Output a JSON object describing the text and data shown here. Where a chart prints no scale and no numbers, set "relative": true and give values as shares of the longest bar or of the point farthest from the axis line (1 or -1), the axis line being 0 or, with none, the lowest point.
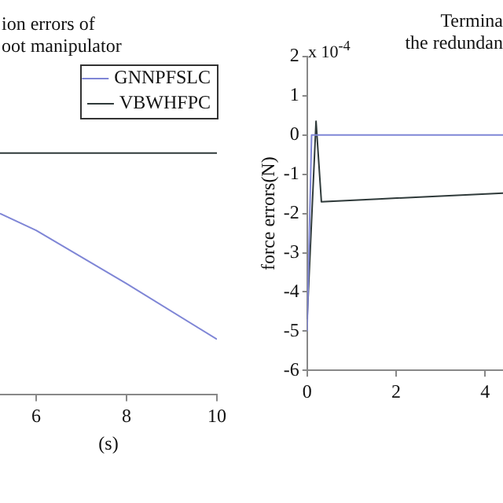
{
  "chart_data": [
    {
      "type": "line",
      "title": "ion errors of\noot manipulator",
      "xlabel": "(s)",
      "relative": true,
      "x": [
        5.2,
        6,
        8,
        10
      ],
      "xlim": [
        5.2,
        10
      ],
      "xticks": [
        6,
        8,
        10
      ],
      "legend": "top right",
      "grid": false,
      "series": [
        {
          "name": "GNNPFSLC",
          "color": "#7f86d6",
          "values": [
            0.75,
            0.68,
            0.46,
            0.23
          ]
        },
        {
          "name": "VBWHFPC",
          "color": "#2f3a3a",
          "values": [
            1,
            1,
            1,
            1
          ]
        }
      ]
    },
    {
      "type": "line",
      "title": "Termina\nthe redundan",
      "ylabel": "force errors(N)",
      "annotations": [
        "x 10$^{-4}$"
      ],
      "xlim": [
        0,
        4.4
      ],
      "xticks": [
        0,
        2,
        4
      ],
      "ylim": [
        -6,
        2
      ],
      "yticks": [
        -6,
        -5,
        -4,
        -3,
        -2,
        -1,
        0,
        1,
        2
      ],
      "grid": false,
      "series": [
        {
          "color": "#7f86d6",
          "x": [
            0,
            0.1,
            4.4
          ],
          "values": [
            -5,
            0,
            0
          ]
        },
        {
          "color": "#2f3a3a",
          "x": [
            0,
            0.2,
            0.32,
            1.6,
            4.4
          ],
          "values": [
            -4.7,
            0.35,
            -1.7,
            -1.63,
            -1.48
          ]
        }
      ]
    }
  ]
}
